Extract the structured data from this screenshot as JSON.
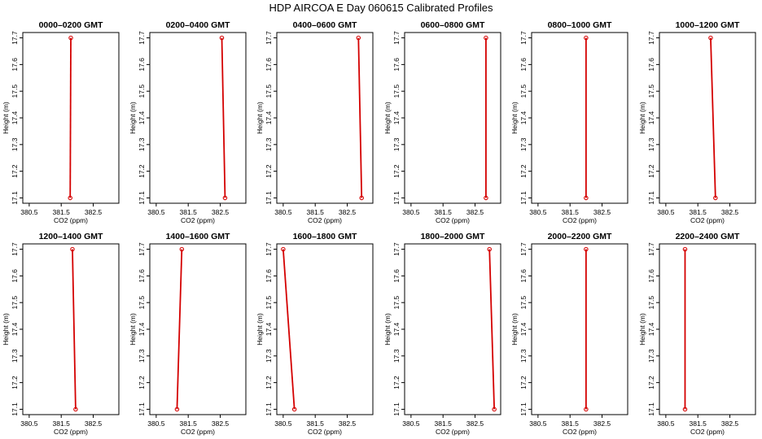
{
  "title": "HDP  AIRCOA E  Day 060615  Calibrated Profiles",
  "colors": {
    "line": "#d40000",
    "marker": "#d40000",
    "axis": "#000000"
  },
  "chart_data": [
    {
      "type": "line",
      "title": "0000–0200 GMT",
      "xlabel": "CO2 (ppm)",
      "ylabel": "Height (m)",
      "xlim": [
        380.3,
        383.3
      ],
      "ylim": [
        17.08,
        17.72
      ],
      "xticks": [
        "380.5",
        "381.5",
        "382.5"
      ],
      "xtick_values": [
        380.5,
        381.5,
        382.5
      ],
      "yticks": [
        "17.1",
        "17.2",
        "17.3",
        "17.4",
        "17.5",
        "17.6",
        "17.7"
      ],
      "ytick_values": [
        17.1,
        17.2,
        17.3,
        17.4,
        17.5,
        17.6,
        17.7
      ],
      "series": [
        {
          "x": [
            381.78,
            381.8
          ],
          "y": [
            17.1,
            17.7
          ]
        }
      ]
    },
    {
      "type": "line",
      "title": "0200–0400 GMT",
      "xlabel": "CO2 (ppm)",
      "ylabel": "Height (m)",
      "xlim": [
        380.3,
        383.3
      ],
      "ylim": [
        17.08,
        17.72
      ],
      "xticks": [
        "380.5",
        "381.5",
        "382.5"
      ],
      "xtick_values": [
        380.5,
        381.5,
        382.5
      ],
      "yticks": [
        "17.1",
        "17.2",
        "17.3",
        "17.4",
        "17.5",
        "17.6",
        "17.7"
      ],
      "ytick_values": [
        17.1,
        17.2,
        17.3,
        17.4,
        17.5,
        17.6,
        17.7
      ],
      "series": [
        {
          "x": [
            382.65,
            382.55
          ],
          "y": [
            17.1,
            17.7
          ]
        }
      ]
    },
    {
      "type": "line",
      "title": "0400–0600 GMT",
      "xlabel": "CO2 (ppm)",
      "ylabel": "Height (m)",
      "xlim": [
        380.3,
        383.3
      ],
      "ylim": [
        17.08,
        17.72
      ],
      "xticks": [
        "380.5",
        "381.5",
        "382.5"
      ],
      "xtick_values": [
        380.5,
        381.5,
        382.5
      ],
      "yticks": [
        "17.1",
        "17.2",
        "17.3",
        "17.4",
        "17.5",
        "17.6",
        "17.7"
      ],
      "ytick_values": [
        17.1,
        17.2,
        17.3,
        17.4,
        17.5,
        17.6,
        17.7
      ],
      "series": [
        {
          "x": [
            382.95,
            382.85
          ],
          "y": [
            17.1,
            17.7
          ]
        }
      ]
    },
    {
      "type": "line",
      "title": "0600–0800 GMT",
      "xlabel": "CO2 (ppm)",
      "ylabel": "Height (m)",
      "xlim": [
        380.3,
        383.3
      ],
      "ylim": [
        17.08,
        17.72
      ],
      "xticks": [
        "380.5",
        "381.5",
        "382.5"
      ],
      "xtick_values": [
        380.5,
        381.5,
        382.5
      ],
      "yticks": [
        "17.1",
        "17.2",
        "17.3",
        "17.4",
        "17.5",
        "17.6",
        "17.7"
      ],
      "ytick_values": [
        17.1,
        17.2,
        17.3,
        17.4,
        17.5,
        17.6,
        17.7
      ],
      "series": [
        {
          "x": [
            382.84,
            382.84
          ],
          "y": [
            17.1,
            17.7
          ]
        }
      ]
    },
    {
      "type": "line",
      "title": "0800–1000 GMT",
      "xlabel": "CO2 (ppm)",
      "ylabel": "Height (m)",
      "xlim": [
        380.3,
        383.3
      ],
      "ylim": [
        17.08,
        17.72
      ],
      "xticks": [
        "380.5",
        "381.5",
        "382.5"
      ],
      "xtick_values": [
        380.5,
        381.5,
        382.5
      ],
      "yticks": [
        "17.1",
        "17.2",
        "17.3",
        "17.4",
        "17.5",
        "17.6",
        "17.7"
      ],
      "ytick_values": [
        17.1,
        17.2,
        17.3,
        17.4,
        17.5,
        17.6,
        17.7
      ],
      "series": [
        {
          "x": [
            382.0,
            382.0
          ],
          "y": [
            17.1,
            17.7
          ]
        }
      ]
    },
    {
      "type": "line",
      "title": "1000–1200 GMT",
      "xlabel": "CO2 (ppm)",
      "ylabel": "Height (m)",
      "xlim": [
        380.3,
        383.3
      ],
      "ylim": [
        17.08,
        17.72
      ],
      "xticks": [
        "380.5",
        "381.5",
        "382.5"
      ],
      "xtick_values": [
        380.5,
        381.5,
        382.5
      ],
      "yticks": [
        "17.1",
        "17.2",
        "17.3",
        "17.4",
        "17.5",
        "17.6",
        "17.7"
      ],
      "ytick_values": [
        17.1,
        17.2,
        17.3,
        17.4,
        17.5,
        17.6,
        17.7
      ],
      "series": [
        {
          "x": [
            382.05,
            381.9
          ],
          "y": [
            17.1,
            17.7
          ]
        }
      ]
    },
    {
      "type": "line",
      "title": "1200–1400 GMT",
      "xlabel": "CO2 (ppm)",
      "ylabel": "Height (m)",
      "xlim": [
        380.3,
        383.3
      ],
      "ylim": [
        17.08,
        17.72
      ],
      "xticks": [
        "380.5",
        "381.5",
        "382.5"
      ],
      "xtick_values": [
        380.5,
        381.5,
        382.5
      ],
      "yticks": [
        "17.1",
        "17.2",
        "17.3",
        "17.4",
        "17.5",
        "17.6",
        "17.7"
      ],
      "ytick_values": [
        17.1,
        17.2,
        17.3,
        17.4,
        17.5,
        17.6,
        17.7
      ],
      "series": [
        {
          "x": [
            381.95,
            381.85
          ],
          "y": [
            17.1,
            17.7
          ]
        }
      ]
    },
    {
      "type": "line",
      "title": "1400–1600 GMT",
      "xlabel": "CO2 (ppm)",
      "ylabel": "Height (m)",
      "xlim": [
        380.3,
        383.3
      ],
      "ylim": [
        17.08,
        17.72
      ],
      "xticks": [
        "380.5",
        "381.5",
        "382.5"
      ],
      "xtick_values": [
        380.5,
        381.5,
        382.5
      ],
      "yticks": [
        "17.1",
        "17.2",
        "17.3",
        "17.4",
        "17.5",
        "17.6",
        "17.7"
      ],
      "ytick_values": [
        17.1,
        17.2,
        17.3,
        17.4,
        17.5,
        17.6,
        17.7
      ],
      "series": [
        {
          "x": [
            381.15,
            381.3
          ],
          "y": [
            17.1,
            17.7
          ]
        }
      ]
    },
    {
      "type": "line",
      "title": "1600–1800 GMT",
      "xlabel": "CO2 (ppm)",
      "ylabel": "Height (m)",
      "xlim": [
        380.3,
        383.3
      ],
      "ylim": [
        17.08,
        17.72
      ],
      "xticks": [
        "380.5",
        "381.5",
        "382.5"
      ],
      "xtick_values": [
        380.5,
        381.5,
        382.5
      ],
      "yticks": [
        "17.1",
        "17.2",
        "17.3",
        "17.4",
        "17.5",
        "17.6",
        "17.7"
      ],
      "ytick_values": [
        17.1,
        17.2,
        17.3,
        17.4,
        17.5,
        17.6,
        17.7
      ],
      "series": [
        {
          "x": [
            380.85,
            380.5
          ],
          "y": [
            17.1,
            17.7
          ]
        }
      ]
    },
    {
      "type": "line",
      "title": "1800–2000 GMT",
      "xlabel": "CO2 (ppm)",
      "ylabel": "Height (m)",
      "xlim": [
        380.3,
        383.3
      ],
      "ylim": [
        17.08,
        17.72
      ],
      "xticks": [
        "380.5",
        "381.5",
        "382.5"
      ],
      "xtick_values": [
        380.5,
        381.5,
        382.5
      ],
      "yticks": [
        "17.1",
        "17.2",
        "17.3",
        "17.4",
        "17.5",
        "17.6",
        "17.7"
      ],
      "ytick_values": [
        17.1,
        17.2,
        17.3,
        17.4,
        17.5,
        17.6,
        17.7
      ],
      "series": [
        {
          "x": [
            383.1,
            382.95
          ],
          "y": [
            17.1,
            17.7
          ]
        }
      ]
    },
    {
      "type": "line",
      "title": "2000–2200 GMT",
      "xlabel": "CO2 (ppm)",
      "ylabel": "Height (m)",
      "xlim": [
        380.3,
        383.3
      ],
      "ylim": [
        17.08,
        17.72
      ],
      "xticks": [
        "380.5",
        "381.5",
        "382.5"
      ],
      "xtick_values": [
        380.5,
        381.5,
        382.5
      ],
      "yticks": [
        "17.1",
        "17.2",
        "17.3",
        "17.4",
        "17.5",
        "17.6",
        "17.7"
      ],
      "ytick_values": [
        17.1,
        17.2,
        17.3,
        17.4,
        17.5,
        17.6,
        17.7
      ],
      "series": [
        {
          "x": [
            382.0,
            382.0
          ],
          "y": [
            17.1,
            17.7
          ]
        }
      ]
    },
    {
      "type": "line",
      "title": "2200–2400 GMT",
      "xlabel": "CO2 (ppm)",
      "ylabel": "Height (m)",
      "xlim": [
        380.3,
        383.3
      ],
      "ylim": [
        17.08,
        17.72
      ],
      "xticks": [
        "380.5",
        "381.5",
        "382.5"
      ],
      "xtick_values": [
        380.5,
        381.5,
        382.5
      ],
      "yticks": [
        "17.1",
        "17.2",
        "17.3",
        "17.4",
        "17.5",
        "17.6",
        "17.7"
      ],
      "ytick_values": [
        17.1,
        17.2,
        17.3,
        17.4,
        17.5,
        17.6,
        17.7
      ],
      "series": [
        {
          "x": [
            381.1,
            381.1
          ],
          "y": [
            17.1,
            17.7
          ]
        }
      ]
    }
  ]
}
